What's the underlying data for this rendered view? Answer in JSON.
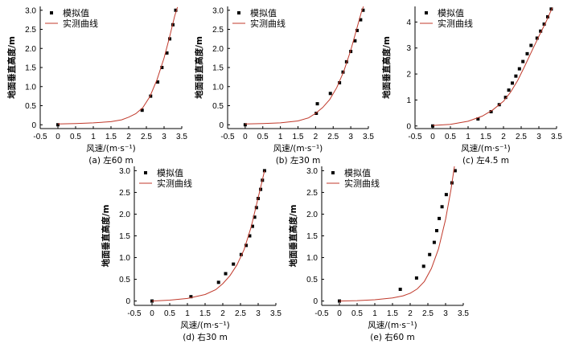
{
  "chart_data": [
    {
      "type": "scatter",
      "caption": "(a) 左60 m",
      "xlabel": "风速/(m·s⁻¹)",
      "ylabel": "地面垂直高度/m",
      "xlim": [
        -0.5,
        3.5
      ],
      "ylim": [
        -0.1,
        3.1
      ],
      "xticks": [
        -0.5,
        0,
        0.5,
        1.0,
        1.5,
        2.0,
        2.5,
        3.0,
        3.5
      ],
      "yticks": [
        0,
        0.5,
        1.0,
        1.5,
        2.0,
        2.5,
        3.0
      ],
      "series": [
        {
          "name": "模拟值",
          "kind": "points",
          "color": "#000000",
          "points": [
            [
              0,
              0
            ],
            [
              2.38,
              0.38
            ],
            [
              2.62,
              0.75
            ],
            [
              2.82,
              1.12
            ],
            [
              2.94,
              1.5
            ],
            [
              3.08,
              1.88
            ],
            [
              3.16,
              2.25
            ],
            [
              3.25,
              2.62
            ],
            [
              3.33,
              3.0
            ]
          ]
        },
        {
          "name": "实测曲线",
          "kind": "line",
          "color": "#c0392b",
          "points": [
            [
              0,
              0.02
            ],
            [
              0.5,
              0.03
            ],
            [
              1.0,
              0.05
            ],
            [
              1.5,
              0.08
            ],
            [
              1.8,
              0.13
            ],
            [
              2.0,
              0.2
            ],
            [
              2.2,
              0.29
            ],
            [
              2.4,
              0.45
            ],
            [
              2.6,
              0.74
            ],
            [
              2.8,
              1.18
            ],
            [
              3.0,
              1.75
            ],
            [
              3.15,
              2.28
            ],
            [
              3.3,
              2.85
            ],
            [
              3.38,
              3.08
            ]
          ]
        }
      ]
    },
    {
      "type": "scatter",
      "caption": "(b) 左30 m",
      "xlabel": "风速/(m·s⁻¹)",
      "ylabel": "地面垂直高度/m",
      "xlim": [
        -0.5,
        3.5
      ],
      "ylim": [
        -0.1,
        3.1
      ],
      "xticks": [
        -0.5,
        0,
        0.5,
        1.0,
        1.5,
        2.0,
        2.5,
        3.0,
        3.5
      ],
      "yticks": [
        0,
        0.5,
        1.0,
        1.5,
        2.0,
        2.5,
        3.0
      ],
      "series": [
        {
          "name": "模拟值",
          "kind": "points",
          "color": "#000000",
          "points": [
            [
              0,
              0
            ],
            [
              2.02,
              0.3
            ],
            [
              2.05,
              0.55
            ],
            [
              2.42,
              0.82
            ],
            [
              2.68,
              1.1
            ],
            [
              2.78,
              1.38
            ],
            [
              2.88,
              1.65
            ],
            [
              3.0,
              1.92
            ],
            [
              3.12,
              2.2
            ],
            [
              3.18,
              2.47
            ],
            [
              3.28,
              2.75
            ],
            [
              3.35,
              3.0
            ]
          ]
        },
        {
          "name": "实测曲线",
          "kind": "line",
          "color": "#c0392b",
          "points": [
            [
              0,
              0.02
            ],
            [
              0.5,
              0.03
            ],
            [
              1.0,
              0.05
            ],
            [
              1.5,
              0.1
            ],
            [
              1.8,
              0.18
            ],
            [
              2.0,
              0.3
            ],
            [
              2.2,
              0.45
            ],
            [
              2.4,
              0.66
            ],
            [
              2.6,
              0.97
            ],
            [
              2.8,
              1.4
            ],
            [
              3.0,
              1.95
            ],
            [
              3.15,
              2.45
            ],
            [
              3.3,
              2.95
            ],
            [
              3.36,
              3.1
            ]
          ]
        }
      ]
    },
    {
      "type": "scatter",
      "caption": "(c) 左4.5 m",
      "xlabel": "风速/(m·s⁻¹)",
      "ylabel": "地面垂直高度/m",
      "xlim": [
        -0.5,
        3.5
      ],
      "ylim": [
        -0.1,
        4.6
      ],
      "xticks": [
        -0.5,
        0,
        0.5,
        1.0,
        1.5,
        2.0,
        2.5,
        3.0,
        3.5
      ],
      "yticks": [
        0,
        1,
        2,
        3,
        4
      ],
      "series": [
        {
          "name": "模拟值",
          "kind": "points",
          "color": "#000000",
          "points": [
            [
              0,
              0
            ],
            [
              1.28,
              0.27
            ],
            [
              1.65,
              0.55
            ],
            [
              1.88,
              0.82
            ],
            [
              2.06,
              1.1
            ],
            [
              2.15,
              1.38
            ],
            [
              2.25,
              1.65
            ],
            [
              2.35,
              1.92
            ],
            [
              2.45,
              2.2
            ],
            [
              2.55,
              2.48
            ],
            [
              2.67,
              2.78
            ],
            [
              2.78,
              3.1
            ],
            [
              2.95,
              3.38
            ],
            [
              3.05,
              3.65
            ],
            [
              3.15,
              3.92
            ],
            [
              3.25,
              4.2
            ],
            [
              3.35,
              4.5
            ]
          ]
        },
        {
          "name": "实测曲线",
          "kind": "line",
          "color": "#c0392b",
          "points": [
            [
              0,
              0.02
            ],
            [
              0.5,
              0.06
            ],
            [
              1.0,
              0.18
            ],
            [
              1.4,
              0.38
            ],
            [
              1.7,
              0.62
            ],
            [
              2.0,
              0.95
            ],
            [
              2.2,
              1.3
            ],
            [
              2.4,
              1.75
            ],
            [
              2.6,
              2.3
            ],
            [
              2.8,
              2.88
            ],
            [
              3.0,
              3.45
            ],
            [
              3.2,
              4.0
            ],
            [
              3.38,
              4.55
            ]
          ]
        }
      ]
    },
    {
      "type": "scatter",
      "caption": "(d) 右30 m",
      "xlabel": "风速/(m·s⁻¹)",
      "ylabel": "地面垂直高度/m",
      "xlim": [
        -0.5,
        3.5
      ],
      "ylim": [
        -0.1,
        3.1
      ],
      "xticks": [
        -0.5,
        0,
        0.5,
        1.0,
        1.5,
        2.0,
        2.5,
        3.0,
        3.5
      ],
      "yticks": [
        0,
        0.5,
        1.0,
        1.5,
        2.0,
        2.5,
        3.0
      ],
      "series": [
        {
          "name": "模拟值",
          "kind": "points",
          "color": "#000000",
          "points": [
            [
              0,
              0
            ],
            [
              1.1,
              0.1
            ],
            [
              1.88,
              0.43
            ],
            [
              2.08,
              0.63
            ],
            [
              2.3,
              0.85
            ],
            [
              2.52,
              1.07
            ],
            [
              2.66,
              1.28
            ],
            [
              2.76,
              1.5
            ],
            [
              2.84,
              1.72
            ],
            [
              2.9,
              1.93
            ],
            [
              2.95,
              2.15
            ],
            [
              3.0,
              2.36
            ],
            [
              3.07,
              2.57
            ],
            [
              3.12,
              2.78
            ],
            [
              3.18,
              3.0
            ]
          ]
        },
        {
          "name": "实测曲线",
          "kind": "line",
          "color": "#c0392b",
          "points": [
            [
              0,
              0.0
            ],
            [
              0.5,
              0.02
            ],
            [
              1.0,
              0.06
            ],
            [
              1.5,
              0.15
            ],
            [
              1.8,
              0.26
            ],
            [
              2.0,
              0.4
            ],
            [
              2.2,
              0.58
            ],
            [
              2.4,
              0.83
            ],
            [
              2.6,
              1.18
            ],
            [
              2.8,
              1.7
            ],
            [
              3.0,
              2.38
            ],
            [
              3.1,
              2.72
            ],
            [
              3.18,
              3.0
            ]
          ]
        }
      ]
    },
    {
      "type": "scatter",
      "caption": "(e) 右60 m",
      "xlabel": "风速/(m·s⁻¹)",
      "ylabel": "地面垂直高度/m",
      "xlim": [
        -0.5,
        3.5
      ],
      "ylim": [
        -0.1,
        3.1
      ],
      "xticks": [
        -0.5,
        0,
        0.5,
        1.0,
        1.5,
        2.0,
        2.5,
        3.0,
        3.5
      ],
      "yticks": [
        0,
        0.5,
        1.0,
        1.5,
        2.0,
        2.5,
        3.0
      ],
      "series": [
        {
          "name": "模拟值",
          "kind": "points",
          "color": "#000000",
          "points": [
            [
              0,
              0
            ],
            [
              1.72,
              0.27
            ],
            [
              2.18,
              0.53
            ],
            [
              2.38,
              0.8
            ],
            [
              2.55,
              1.07
            ],
            [
              2.68,
              1.35
            ],
            [
              2.75,
              1.62
            ],
            [
              2.82,
              1.9
            ],
            [
              2.9,
              2.17
            ],
            [
              3.02,
              2.45
            ],
            [
              3.18,
              2.72
            ],
            [
              3.27,
              3.0
            ]
          ]
        },
        {
          "name": "实测曲线",
          "kind": "line",
          "color": "#c0392b",
          "points": [
            [
              0,
              0.0
            ],
            [
              0.5,
              0.01
            ],
            [
              1.0,
              0.03
            ],
            [
              1.5,
              0.07
            ],
            [
              1.8,
              0.12
            ],
            [
              2.0,
              0.18
            ],
            [
              2.2,
              0.28
            ],
            [
              2.4,
              0.45
            ],
            [
              2.6,
              0.75
            ],
            [
              2.8,
              1.2
            ],
            [
              3.0,
              1.88
            ],
            [
              3.15,
              2.55
            ],
            [
              3.25,
              3.1
            ]
          ]
        }
      ]
    }
  ]
}
